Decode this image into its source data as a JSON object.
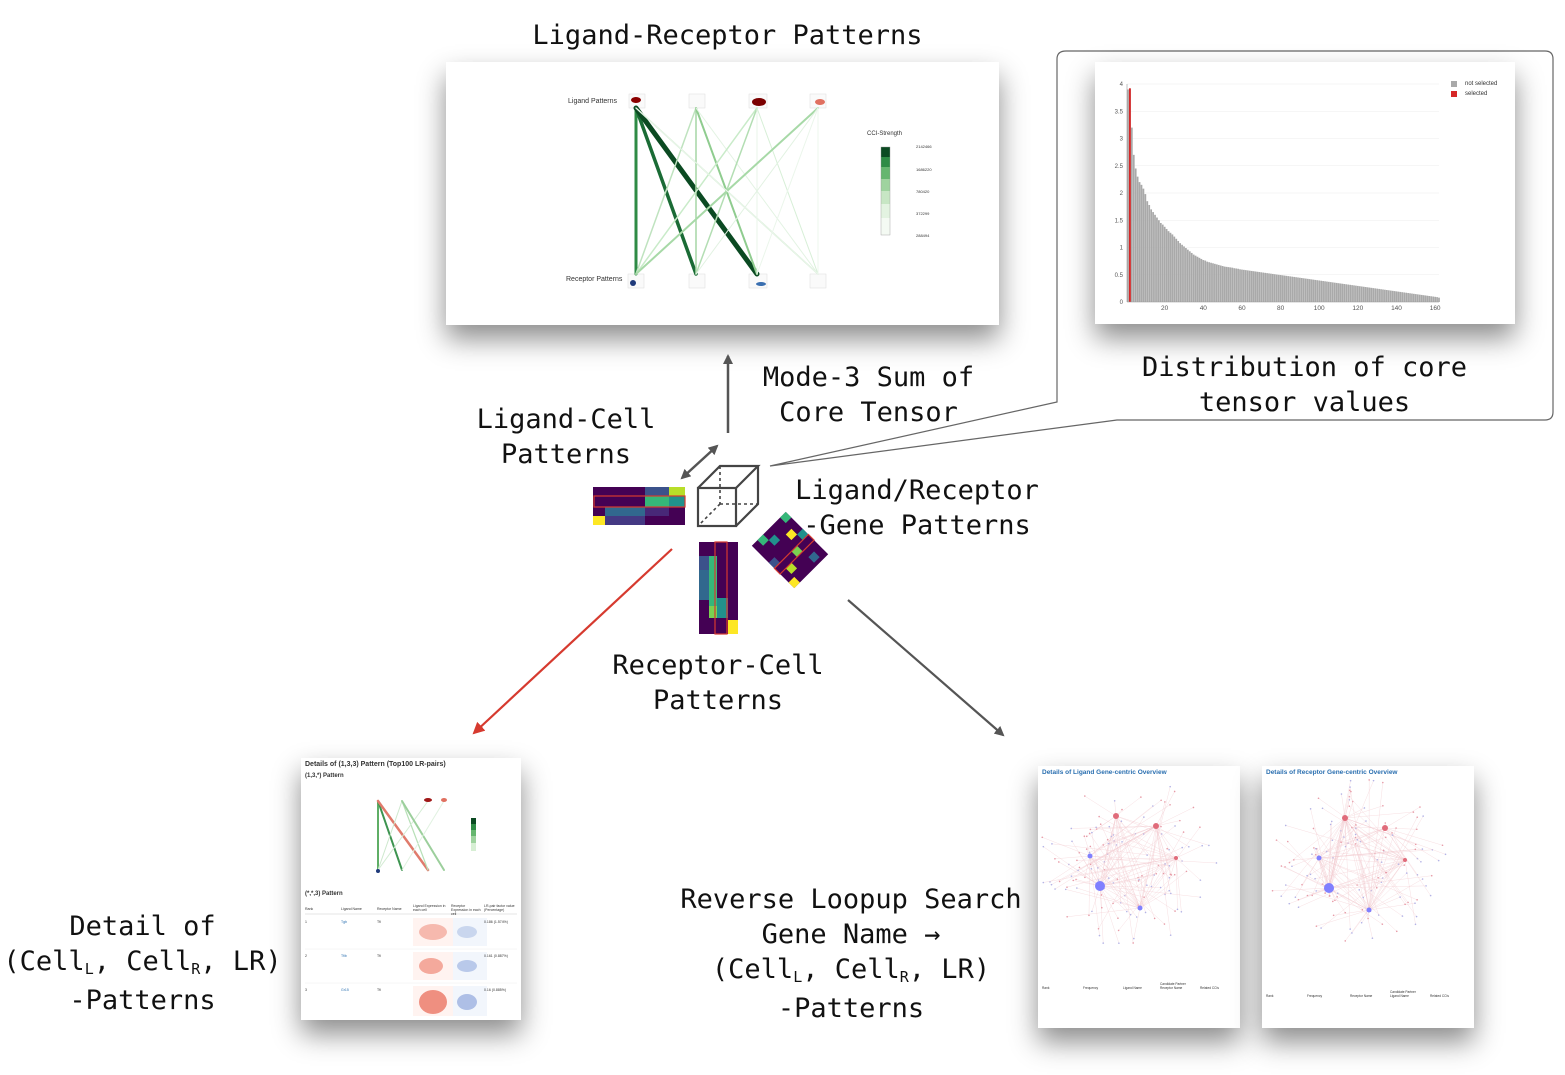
{
  "labels": {
    "lr_patterns": "Ligand-Receptor Patterns",
    "mode3_line1": "Mode-3 Sum of",
    "mode3_line2": "Core Tensor",
    "distribution_line1": "Distribution of core",
    "distribution_line2": "tensor values",
    "ligand_cell_line1": "Ligand-Cell",
    "ligand_cell_line2": "Patterns",
    "lr_gene_line1": "Ligand/Receptor",
    "lr_gene_line2": "-Gene Patterns",
    "receptor_cell_line1": "Receptor-Cell",
    "receptor_cell_line2": "Patterns",
    "detail_line1": "Detail of",
    "detail_line2_a": "(Cell",
    "detail_line2_sub1": "L",
    "detail_line2_b": ", Cell",
    "detail_line2_sub2": "R",
    "detail_line2_c": ", LR)",
    "detail_line3": "-Patterns",
    "reverse_line1": "Reverse Loopup Search",
    "reverse_line2": "Gene Name →",
    "reverse_line3_a": "(Cell",
    "reverse_line3_sub1": "L",
    "reverse_line3_b": ", Cell",
    "reverse_line3_sub2": "R",
    "reverse_line3_c": ", LR)",
    "reverse_line4": "-Patterns"
  },
  "lr_panel": {
    "ligand_patterns": "Ligand Patterns",
    "receptor_patterns": "Receptor Patterns",
    "legend_title": "CCI-Strength",
    "legend_ticks": [
      "2142466",
      "1686220",
      "780420",
      "372299",
      "288494"
    ]
  },
  "dist_panel": {
    "legend": [
      "not selected",
      "selected"
    ],
    "colors": {
      "not_selected": "#a9a9a9",
      "selected": "#d62728"
    }
  },
  "detail_panel": {
    "title": "Details of (1,3,3) Pattern (Top100 LR-pairs)",
    "sub1": "(1,3,*) Pattern",
    "sub2": "(*,*,3) Pattern",
    "table_headers": [
      "Rank",
      "Ligand Name",
      "Receptor Name",
      "Ligand Expression in each cell",
      "Receptor Expression in each cell",
      "LR-pair factor value (Percentage)"
    ],
    "rows": [
      [
        "1",
        "Tgb",
        "Tfi",
        "",
        "",
        "0.186 (1.574%)"
      ],
      [
        "2",
        "Tfib",
        "Tfi",
        "",
        "",
        "0.161 (0.887%)"
      ],
      [
        "3",
        "Gr15",
        "Tfi",
        "",
        "",
        "0.16 (0.885%)"
      ]
    ]
  },
  "ligand_overview": {
    "title": "Details of Ligand Gene-centric Overview",
    "headers": [
      "Rank",
      "Frequency",
      "Ligand Name",
      "Candidate Partner Receptor Name",
      "Related CCIs"
    ]
  },
  "receptor_overview": {
    "title": "Details of Receptor Gene-centric Overview",
    "headers": [
      "Rank",
      "Frequency",
      "Receptor Name",
      "Candidate Partner Ligand Name",
      "Related CCIs"
    ]
  },
  "chart_data": {
    "type": "bar",
    "title": "",
    "xlabel": "",
    "ylabel": "",
    "xlim": [
      0,
      160
    ],
    "ylim": [
      0,
      4
    ],
    "x_ticks": [
      20,
      40,
      60,
      80,
      100,
      120,
      140,
      160
    ],
    "y_ticks": [
      0,
      0.5,
      1,
      1.5,
      2,
      2.5,
      3,
      3.5,
      4
    ],
    "legend_position": "top-right",
    "series": [
      {
        "name": "selected",
        "x": [
          2
        ],
        "values": [
          3.92
        ]
      },
      {
        "name": "not selected",
        "x_start": 1,
        "x_end": 160,
        "values": [
          3.9,
          3.92,
          3.2,
          2.7,
          2.45,
          2.3,
          2.2,
          2.15,
          2.08,
          1.98,
          1.85,
          1.78,
          1.7,
          1.65,
          1.6,
          1.55,
          1.5,
          1.45,
          1.42,
          1.38,
          1.34,
          1.3,
          1.27,
          1.24,
          1.2,
          1.16,
          1.12,
          1.08,
          1.05,
          1.02,
          0.99,
          0.96,
          0.93,
          0.9,
          0.87,
          0.85,
          0.83,
          0.81,
          0.79,
          0.77,
          0.76,
          0.74,
          0.73,
          0.72,
          0.71,
          0.7,
          0.69,
          0.68,
          0.67,
          0.66,
          0.65,
          0.645,
          0.64,
          0.635,
          0.63,
          0.62,
          0.615,
          0.61,
          0.6,
          0.595,
          0.59,
          0.585,
          0.58,
          0.575,
          0.57,
          0.565,
          0.56,
          0.555,
          0.55,
          0.545,
          0.54,
          0.535,
          0.53,
          0.525,
          0.52,
          0.515,
          0.51,
          0.505,
          0.5,
          0.495,
          0.49,
          0.485,
          0.48,
          0.475,
          0.47,
          0.465,
          0.46,
          0.455,
          0.45,
          0.445,
          0.44,
          0.435,
          0.43,
          0.425,
          0.42,
          0.415,
          0.41,
          0.405,
          0.4,
          0.395,
          0.39,
          0.385,
          0.38,
          0.375,
          0.37,
          0.365,
          0.36,
          0.355,
          0.35,
          0.345,
          0.34,
          0.335,
          0.33,
          0.325,
          0.32,
          0.315,
          0.31,
          0.305,
          0.3,
          0.295,
          0.29,
          0.285,
          0.28,
          0.275,
          0.27,
          0.265,
          0.26,
          0.255,
          0.25,
          0.245,
          0.24,
          0.235,
          0.23,
          0.225,
          0.22,
          0.215,
          0.21,
          0.205,
          0.2,
          0.195,
          0.19,
          0.185,
          0.18,
          0.175,
          0.17,
          0.165,
          0.16,
          0.155,
          0.15,
          0.145,
          0.14,
          0.135,
          0.13,
          0.125,
          0.12,
          0.115,
          0.11,
          0.105,
          0.1,
          0.095,
          0.09,
          0.08
        ]
      }
    ]
  }
}
